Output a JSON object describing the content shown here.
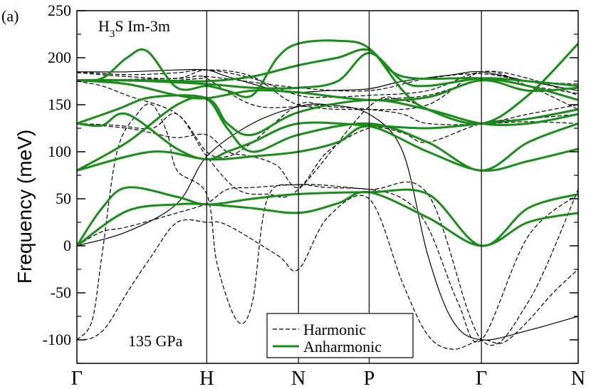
{
  "chart_data": {
    "type": "line",
    "panel_label": "(a)",
    "title": "",
    "annotations": {
      "material": "H",
      "material_sub": "3",
      "material_rest": "S Im-3m",
      "pressure": "135 GPa"
    },
    "ylabel": "Frequency (meV)",
    "ylim": [
      -125,
      250
    ],
    "yticks": [
      -100,
      -50,
      0,
      50,
      100,
      150,
      200,
      250
    ],
    "ytick_labels": [
      "-100",
      "-50",
      "0",
      "50",
      "100",
      "150",
      "200",
      "250"
    ],
    "xlim": [
      0,
      1
    ],
    "high_symmetry_points": [
      {
        "label": "Γ",
        "x": 0.0
      },
      {
        "label": "H",
        "x": 0.259
      },
      {
        "label": "N",
        "x": 0.442
      },
      {
        "label": "P",
        "x": 0.583
      },
      {
        "label": "Γ",
        "x": 0.807
      },
      {
        "label": "N",
        "x": 1.0
      }
    ],
    "legend": {
      "position": "bottom-center",
      "entries": [
        {
          "label": "Harmonic",
          "style": "dashed",
          "color": "#000000"
        },
        {
          "label": "Anharmonic",
          "style": "solid",
          "color": "#1a8c1a"
        }
      ]
    },
    "series": [
      {
        "style": "anharmonic",
        "x": [
          0,
          0.1,
          0.2,
          0.259,
          0.35,
          0.442,
          0.52,
          0.583,
          0.7,
          0.807,
          0.9,
          1.0
        ],
        "y": [
          0,
          37,
          44,
          44,
          40,
          35,
          45,
          57,
          30,
          0,
          25,
          35
        ]
      },
      {
        "style": "anharmonic",
        "x": [
          0,
          0.05,
          0.1,
          0.2,
          0.259,
          0.35,
          0.442,
          0.583,
          0.7,
          0.807,
          0.9,
          1.0
        ],
        "y": [
          0,
          40,
          62,
          52,
          44,
          50,
          55,
          57,
          55,
          0,
          40,
          55
        ]
      },
      {
        "style": "anharmonic",
        "x": [
          0,
          0.15,
          0.259,
          0.35,
          0.442,
          0.52,
          0.583,
          0.7,
          0.807,
          0.9,
          1.0
        ],
        "y": [
          80,
          100,
          92,
          95,
          100,
          110,
          127,
          100,
          80,
          90,
          103
        ]
      },
      {
        "style": "anharmonic",
        "x": [
          0,
          0.1,
          0.2,
          0.259,
          0.3,
          0.35,
          0.442,
          0.583,
          0.7,
          0.807,
          0.9,
          1.0
        ],
        "y": [
          80,
          110,
          150,
          156,
          125,
          100,
          118,
          130,
          110,
          80,
          110,
          130
        ]
      },
      {
        "style": "anharmonic",
        "x": [
          0,
          0.05,
          0.1,
          0.2,
          0.259,
          0.3,
          0.35,
          0.442,
          0.583,
          0.7,
          0.807,
          0.9,
          1.0
        ],
        "y": [
          130,
          128,
          140,
          103,
          92,
          100,
          110,
          130,
          128,
          125,
          130,
          135,
          145
        ]
      },
      {
        "style": "anharmonic",
        "x": [
          0,
          0.08,
          0.15,
          0.259,
          0.3,
          0.35,
          0.442,
          0.583,
          0.7,
          0.807,
          0.9,
          1.0
        ],
        "y": [
          130,
          145,
          158,
          157,
          130,
          118,
          142,
          155,
          145,
          130,
          130,
          140
        ]
      },
      {
        "style": "anharmonic",
        "x": [
          0,
          0.1,
          0.2,
          0.259,
          0.35,
          0.442,
          0.583,
          0.7,
          0.807,
          0.9,
          1.0
        ],
        "y": [
          176,
          172,
          160,
          157,
          165,
          163,
          155,
          158,
          176,
          165,
          168
        ]
      },
      {
        "style": "anharmonic",
        "x": [
          0,
          0.05,
          0.1,
          0.14,
          0.2,
          0.259,
          0.3,
          0.35,
          0.4,
          0.442,
          0.52,
          0.583,
          0.65,
          0.7,
          0.807,
          0.9,
          1.0
        ],
        "y": [
          176,
          178,
          200,
          207,
          168,
          170,
          165,
          160,
          200,
          215,
          218,
          210,
          165,
          145,
          130,
          160,
          215
        ]
      },
      {
        "style": "anharmonic",
        "x": [
          0,
          0.1,
          0.259,
          0.35,
          0.442,
          0.52,
          0.583,
          0.65,
          0.7,
          0.807,
          0.9,
          1.0
        ],
        "y": [
          176,
          176,
          172,
          168,
          168,
          175,
          205,
          175,
          170,
          178,
          175,
          170
        ]
      },
      {
        "style": "anharmonic",
        "x": [
          0,
          0.15,
          0.259,
          0.35,
          0.442,
          0.52,
          0.583,
          0.65,
          0.807,
          0.9,
          1.0
        ],
        "y": [
          176,
          176,
          175,
          180,
          192,
          200,
          208,
          180,
          178,
          170,
          155
        ]
      },
      {
        "style": "harmonic",
        "x": [
          0,
          0.03,
          0.06,
          0.1,
          0.15,
          0.2,
          0.259,
          0.3,
          0.4,
          0.442,
          0.5,
          0.583,
          0.65,
          0.7,
          0.75,
          0.807,
          0.85,
          0.9,
          0.95,
          1.0
        ],
        "y": [
          -100,
          -98,
          -85,
          -50,
          -10,
          25,
          25,
          22,
          -10,
          -25,
          30,
          50,
          -40,
          -95,
          -110,
          -100,
          -103,
          -80,
          -50,
          -25
        ]
      },
      {
        "style": "harmonic",
        "x": [
          0,
          0.05,
          0.1,
          0.2,
          0.259,
          0.3,
          0.35,
          0.442,
          0.5,
          0.583,
          0.65,
          0.7,
          0.76,
          0.807,
          0.9,
          1.0
        ],
        "y": [
          0,
          15,
          20,
          35,
          45,
          60,
          62,
          65,
          62,
          60,
          50,
          20,
          -60,
          -100,
          10,
          55
        ]
      },
      {
        "style": "harmonic",
        "x": [
          0,
          0.03,
          0.05,
          0.08,
          0.12,
          0.15,
          0.18,
          0.2,
          0.259,
          0.28,
          0.32,
          0.35,
          0.38,
          0.442,
          0.583,
          0.7,
          0.807,
          0.9,
          1.0
        ],
        "y": [
          -100,
          -80,
          -10,
          100,
          140,
          150,
          120,
          80,
          55,
          -20,
          -80,
          -60,
          50,
          65,
          60,
          55,
          -100,
          -60,
          60
        ]
      },
      {
        "style": "harmonic",
        "x": [
          0,
          0.1,
          0.15,
          0.2,
          0.259,
          0.3,
          0.35,
          0.4,
          0.442,
          0.5,
          0.583,
          0.65,
          0.7,
          0.807,
          0.9,
          1.0
        ],
        "y": [
          130,
          125,
          120,
          115,
          118,
          100,
          95,
          85,
          62,
          100,
          125,
          120,
          110,
          130,
          135,
          140
        ]
      },
      {
        "style": "harmonic",
        "x": [
          0,
          0.05,
          0.1,
          0.2,
          0.259,
          0.3,
          0.35,
          0.442,
          0.5,
          0.583,
          0.65,
          0.7,
          0.807,
          0.9,
          1.0
        ],
        "y": [
          175,
          170,
          160,
          140,
          100,
          95,
          110,
          150,
          148,
          145,
          140,
          130,
          130,
          140,
          150
        ]
      },
      {
        "style": "harmonic",
        "x": [
          0,
          0.1,
          0.2,
          0.259,
          0.35,
          0.442,
          0.5,
          0.583,
          0.7,
          0.807,
          0.9,
          1.0
        ],
        "y": [
          185,
          182,
          184,
          187,
          178,
          160,
          158,
          160,
          165,
          185,
          178,
          160
        ]
      },
      {
        "style": "harmonic",
        "x": [
          0,
          0.1,
          0.2,
          0.259,
          0.35,
          0.442,
          0.583,
          0.7,
          0.807,
          0.9,
          1.0
        ],
        "y": [
          184,
          180,
          178,
          187,
          180,
          150,
          145,
          150,
          185,
          170,
          145
        ]
      },
      {
        "style": "harmonic",
        "x": [
          0,
          0.15,
          0.25,
          0.259,
          0.35,
          0.442,
          0.583,
          0.7,
          0.807,
          0.9,
          1.0
        ],
        "y": [
          176,
          175,
          178,
          178,
          150,
          148,
          155,
          160,
          176,
          170,
          162
        ]
      },
      {
        "style": "harmonic",
        "x": [
          0,
          0.08,
          0.15,
          0.2,
          0.259,
          0.32,
          0.38,
          0.442,
          0.583,
          0.65,
          0.75,
          0.807,
          0.9,
          1.0
        ],
        "y": [
          130,
          128,
          125,
          140,
          95,
          60,
          55,
          60,
          148,
          155,
          135,
          130,
          132,
          130
        ]
      },
      {
        "style": "harmonic",
        "x": [
          0,
          0.2,
          0.259,
          0.442,
          0.583,
          0.7,
          0.807,
          0.9,
          1.0
        ],
        "y": [
          176,
          178,
          180,
          168,
          165,
          178,
          183,
          175,
          172
        ]
      },
      {
        "style": "harmonic_solid",
        "x": [
          0,
          0.1,
          0.2,
          0.259,
          0.35,
          0.442,
          0.5,
          0.583,
          0.65,
          0.7,
          0.75,
          0.807,
          0.9,
          1.0
        ],
        "y": [
          0,
          15,
          45,
          95,
          130,
          148,
          150,
          140,
          100,
          -10,
          -80,
          -100,
          -90,
          -75
        ]
      },
      {
        "style": "harmonic_solid",
        "x": [
          0,
          0.1,
          0.2,
          0.259,
          0.3,
          0.4,
          0.442,
          0.5,
          0.583,
          0.65,
          0.75,
          0.807,
          0.9,
          1.0
        ],
        "y": [
          185,
          185,
          187,
          187,
          180,
          165,
          163,
          165,
          167,
          175,
          182,
          185,
          175,
          165
        ]
      }
    ]
  }
}
